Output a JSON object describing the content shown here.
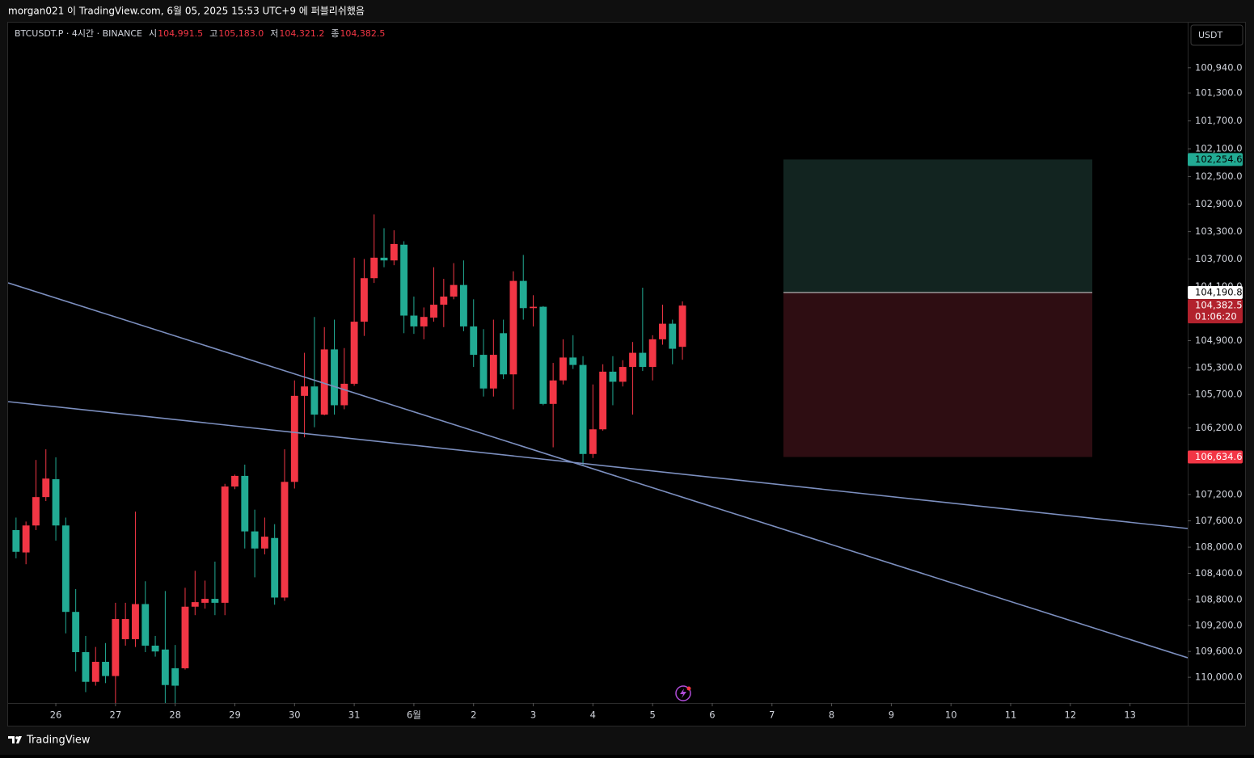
{
  "header": "morgan021 이 TradingView.com, 6월 05, 2025 15:53 UTC+9 에 퍼블리쉬했음",
  "footer": "TradingView",
  "chart_data": {
    "type": "candlestick",
    "currency": "USDT",
    "log_scale": true,
    "inverted": true,
    "up_color": "#22ab94",
    "down_color": "#f23645",
    "ylim": [
      100300,
      110400
    ],
    "xlim": [
      -0.8,
      117.8
    ],
    "yticks": [
      {
        "value": 100940,
        "label": "100,940.0"
      },
      {
        "value": 101300,
        "label": "101,300.0"
      },
      {
        "value": 101700,
        "label": "101,700.0"
      },
      {
        "value": 102100,
        "label": "102,100.0"
      },
      {
        "value": 102500,
        "label": "102,500.0"
      },
      {
        "value": 102900,
        "label": "102,900.0"
      },
      {
        "value": 103300,
        "label": "103,300.0"
      },
      {
        "value": 103700,
        "label": "103,700.0"
      },
      {
        "value": 104100,
        "label": "104,100.0"
      },
      {
        "value": 104900,
        "label": "104,900.0"
      },
      {
        "value": 105300,
        "label": "105,300.0"
      },
      {
        "value": 105700,
        "label": "105,700.0"
      },
      {
        "value": 106200,
        "label": "106,200.0"
      },
      {
        "value": 107200,
        "label": "107,200.0"
      },
      {
        "value": 107600,
        "label": "107,600.0"
      },
      {
        "value": 108000,
        "label": "108,000.0"
      },
      {
        "value": 108400,
        "label": "108,400.0"
      },
      {
        "value": 108800,
        "label": "108,800.0"
      },
      {
        "value": 109200,
        "label": "109,200.0"
      },
      {
        "value": 109600,
        "label": "109,600.0"
      },
      {
        "value": 110000,
        "label": "110,000.0"
      }
    ],
    "xticks": [
      {
        "value": 4,
        "label": "26"
      },
      {
        "value": 10,
        "label": "27"
      },
      {
        "value": 16,
        "label": "28"
      },
      {
        "value": 22,
        "label": "29"
      },
      {
        "value": 28,
        "label": "30"
      },
      {
        "value": 34,
        "label": "31"
      },
      {
        "value": 40,
        "label": "6월"
      },
      {
        "value": 46,
        "label": "2"
      },
      {
        "value": 52,
        "label": "3"
      },
      {
        "value": 58,
        "label": "4"
      },
      {
        "value": 64,
        "label": "5"
      },
      {
        "value": 70,
        "label": "6"
      },
      {
        "value": 76,
        "label": "7"
      },
      {
        "value": 82,
        "label": "8"
      },
      {
        "value": 88,
        "label": "9"
      },
      {
        "value": 94,
        "label": "10"
      },
      {
        "value": 100,
        "label": "11"
      },
      {
        "value": 106,
        "label": "12"
      },
      {
        "value": 112,
        "label": "13"
      }
    ],
    "series": [
      {
        "name": "BTCUSDT.P · 4시간 · BINANCE",
        "open": [
          107740,
          108080,
          107670,
          107240,
          106970,
          107670,
          108990,
          109610,
          110070,
          109760,
          109980,
          109410,
          109410,
          108870,
          109510,
          109570,
          109860,
          109860,
          108910,
          108850,
          108790,
          108850,
          107080,
          106920,
          107760,
          108020,
          107860,
          108770,
          107010,
          105720,
          105580,
          106000,
          105030,
          105860,
          105540,
          104620,
          103980,
          103680,
          103720,
          103490,
          104530,
          104690,
          104560,
          104370,
          104250,
          104080,
          104690,
          105110,
          105610,
          104790,
          105400,
          104020,
          104420,
          104400,
          105840,
          105490,
          105150,
          105260,
          106590,
          106220,
          105360,
          105510,
          105290,
          105080,
          105290,
          104880,
          104650,
          104991.5
        ],
        "high": [
          108170,
          108260,
          107740,
          107300,
          107900,
          109320,
          109910,
          110230,
          110130,
          110090,
          110400,
          109510,
          109530,
          109610,
          109680,
          110400,
          110400,
          109880,
          109040,
          108940,
          109040,
          109040,
          107120,
          108020,
          108460,
          108110,
          108880,
          108820,
          107110,
          106340,
          106190,
          106010,
          106000,
          105920,
          105570,
          104830,
          104050,
          103820,
          103790,
          104790,
          104800,
          104880,
          104620,
          104700,
          104290,
          104760,
          105290,
          105730,
          105730,
          105470,
          105920,
          104590,
          104690,
          105860,
          106490,
          105550,
          105320,
          106760,
          106650,
          106240,
          105860,
          105580,
          106000,
          105350,
          105490,
          104960,
          105250,
          105183
        ],
        "low": [
          107550,
          107610,
          106680,
          106520,
          106640,
          107550,
          108640,
          109360,
          109530,
          109470,
          108850,
          108850,
          107460,
          108520,
          109360,
          108670,
          109500,
          108620,
          108360,
          108510,
          108220,
          107040,
          106900,
          106750,
          107430,
          107550,
          107650,
          106520,
          105490,
          105080,
          104550,
          104700,
          104590,
          105010,
          103680,
          103700,
          103050,
          103250,
          103280,
          103440,
          104250,
          104410,
          103820,
          103990,
          103760,
          103720,
          104290,
          104730,
          104590,
          104590,
          103880,
          103640,
          104230,
          104390,
          105230,
          104880,
          104820,
          105130,
          105550,
          105250,
          105130,
          105190,
          104920,
          104120,
          104820,
          104370,
          104590,
          104321.2
        ],
        "close": [
          108070,
          107670,
          107240,
          106960,
          107670,
          108990,
          109610,
          110070,
          109760,
          109980,
          109100,
          109100,
          108870,
          109510,
          109600,
          110120,
          110130,
          108910,
          108840,
          108790,
          108850,
          107080,
          106920,
          107760,
          108020,
          107840,
          108770,
          107010,
          105720,
          105580,
          106000,
          105030,
          105860,
          105540,
          104620,
          103980,
          103680,
          103720,
          103480,
          104530,
          104690,
          104550,
          104370,
          104250,
          104080,
          104690,
          105110,
          105610,
          105110,
          105400,
          104020,
          104420,
          104400,
          105840,
          105490,
          105150,
          105260,
          106590,
          106220,
          105360,
          105510,
          105290,
          105080,
          105290,
          104880,
          104650,
          105020,
          104382.5
        ]
      }
    ],
    "legend_fields": [
      {
        "name": "시",
        "value": 104991.5,
        "label": "104,991.5"
      },
      {
        "name": "고",
        "value": 105183,
        "label": "105,183.0"
      },
      {
        "name": "저",
        "value": 104321.2,
        "label": "104,321.2"
      },
      {
        "name": "종",
        "value": 104382.5,
        "label": "104,382.5"
      }
    ],
    "price_labels": [
      {
        "value": 102254.6,
        "label": "102,254.6",
        "color": "#22ab94",
        "text_color": "#000000"
      },
      {
        "value": 104190.8,
        "label": "104,190.8",
        "color": "#ffffff",
        "text_color": "#000000"
      },
      {
        "value": 104382.5,
        "label": "104,382.5",
        "color": "#b2222d",
        "text_color": "#ffffff",
        "countdown": "01:06:20"
      },
      {
        "value": 106634.6,
        "label": "106,634.6",
        "color": "#f23645",
        "text_color": "#ffffff"
      }
    ]
  }
}
